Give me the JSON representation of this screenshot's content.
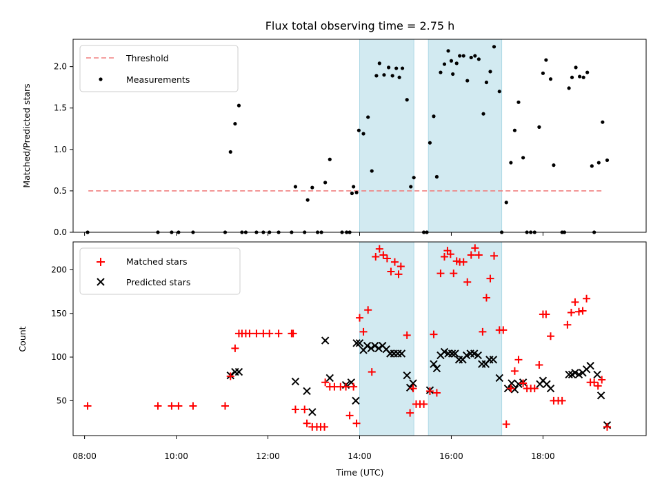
{
  "colors": {
    "threshold": "#f07f7f",
    "measurement": "#000000",
    "matched": "#ff0000",
    "predicted": "#000000",
    "window": "#add8e6"
  },
  "chart_data": [
    {
      "type": "scatter",
      "title": "Flux total observing time = 2.75 h",
      "ylabel": "Matched/Predicted stars",
      "xlabel": "",
      "ylim": [
        0,
        2.33
      ],
      "xlim": [
        "07:45",
        "20:15"
      ],
      "yticks": [
        "0.0",
        "0.5",
        "1.0",
        "1.5",
        "2.0"
      ],
      "shaded_windows": [
        [
          "14:00",
          "15:11"
        ],
        [
          "15:30",
          "17:06"
        ]
      ],
      "legend": {
        "placement": "upper-left",
        "entries": [
          "Threshold",
          "Measurements"
        ]
      },
      "threshold": {
        "name": "Threshold",
        "value": 0.5,
        "x": [
          "08:05",
          "19:20"
        ]
      },
      "series": [
        {
          "name": "Measurements",
          "points": [
            [
              "08:04",
              0
            ],
            [
              "09:36",
              0
            ],
            [
              "09:54",
              0
            ],
            [
              "10:03",
              0
            ],
            [
              "10:22",
              0
            ],
            [
              "11:04",
              0
            ],
            [
              "11:11",
              0.97
            ],
            [
              "11:17",
              1.31
            ],
            [
              "11:22",
              1.53
            ],
            [
              "11:26",
              0
            ],
            [
              "11:31",
              0
            ],
            [
              "11:45",
              0
            ],
            [
              "11:54",
              0
            ],
            [
              "12:02",
              0
            ],
            [
              "12:14",
              0
            ],
            [
              "12:31",
              0
            ],
            [
              "12:36",
              0.55
            ],
            [
              "12:48",
              0
            ],
            [
              "12:52",
              0.39
            ],
            [
              "12:58",
              0.54
            ],
            [
              "13:05",
              0
            ],
            [
              "13:10",
              0
            ],
            [
              "13:15",
              0.6
            ],
            [
              "13:21",
              0.88
            ],
            [
              "13:37",
              0
            ],
            [
              "13:43",
              0
            ],
            [
              "13:47",
              0
            ],
            [
              "13:50",
              0.47
            ],
            [
              "13:52",
              0.55
            ],
            [
              "13:56",
              0.48
            ],
            [
              "13:59",
              1.23
            ],
            [
              "14:05",
              1.19
            ],
            [
              "14:11",
              1.39
            ],
            [
              "14:16",
              0.74
            ],
            [
              "14:22",
              1.89
            ],
            [
              "14:26",
              2.04
            ],
            [
              "14:32",
              1.9
            ],
            [
              "14:38",
              1.99
            ],
            [
              "14:43",
              1.89
            ],
            [
              "14:48",
              1.98
            ],
            [
              "14:52",
              1.87
            ],
            [
              "14:56",
              1.98
            ],
            [
              "15:02",
              1.6
            ],
            [
              "15:07",
              0.55
            ],
            [
              "15:11",
              0.66
            ],
            [
              "15:24",
              0
            ],
            [
              "15:28",
              0
            ],
            [
              "15:32",
              1.08
            ],
            [
              "15:37",
              1.4
            ],
            [
              "15:41",
              0.67
            ],
            [
              "15:46",
              1.93
            ],
            [
              "15:51",
              2.03
            ],
            [
              "15:56",
              2.19
            ],
            [
              "16:00",
              2.07
            ],
            [
              "16:02",
              1.91
            ],
            [
              "16:07",
              2.04
            ],
            [
              "16:11",
              2.13
            ],
            [
              "16:16",
              2.13
            ],
            [
              "16:21",
              1.83
            ],
            [
              "16:26",
              2.11
            ],
            [
              "16:31",
              2.13
            ],
            [
              "16:36",
              2.09
            ],
            [
              "16:42",
              1.43
            ],
            [
              "16:46",
              1.81
            ],
            [
              "16:51",
              1.94
            ],
            [
              "16:56",
              2.24
            ],
            [
              "17:03",
              1.7
            ],
            [
              "17:06",
              0
            ],
            [
              "17:12",
              0.36
            ],
            [
              "17:18",
              0.84
            ],
            [
              "17:23",
              1.23
            ],
            [
              "17:28",
              1.57
            ],
            [
              "17:34",
              0.9
            ],
            [
              "17:39",
              0
            ],
            [
              "17:44",
              0
            ],
            [
              "17:49",
              0
            ],
            [
              "17:55",
              1.27
            ],
            [
              "18:00",
              1.92
            ],
            [
              "18:04",
              2.08
            ],
            [
              "18:10",
              1.85
            ],
            [
              "18:14",
              0.81
            ],
            [
              "18:25",
              0
            ],
            [
              "18:28",
              0
            ],
            [
              "18:34",
              1.74
            ],
            [
              "18:38",
              1.87
            ],
            [
              "18:43",
              1.99
            ],
            [
              "18:48",
              1.88
            ],
            [
              "18:53",
              1.87
            ],
            [
              "18:58",
              1.93
            ],
            [
              "19:04",
              0.8
            ],
            [
              "19:07",
              0
            ],
            [
              "19:13",
              0.84
            ],
            [
              "19:18",
              1.33
            ],
            [
              "19:24",
              0.87
            ]
          ]
        }
      ]
    },
    {
      "type": "scatter",
      "title": "",
      "ylabel": "Count",
      "xlabel": "Time (UTC)",
      "ylim": [
        10,
        232
      ],
      "xlim": [
        "07:45",
        "20:15"
      ],
      "yticks": [
        "50",
        "100",
        "150",
        "200"
      ],
      "xticks": [
        "08:00",
        "10:00",
        "12:00",
        "14:00",
        "16:00",
        "18:00"
      ],
      "shaded_windows": [
        [
          "14:00",
          "15:11"
        ],
        [
          "15:30",
          "17:06"
        ]
      ],
      "legend": {
        "placement": "upper-left",
        "entries": [
          "Matched stars",
          "Predicted stars"
        ]
      },
      "series": [
        {
          "name": "Matched stars",
          "marker": "+",
          "points": [
            [
              "08:04",
              44
            ],
            [
              "09:36",
              44
            ],
            [
              "09:54",
              44
            ],
            [
              "10:03",
              44
            ],
            [
              "10:22",
              44
            ],
            [
              "11:04",
              44
            ],
            [
              "11:11",
              78
            ],
            [
              "11:17",
              110
            ],
            [
              "11:22",
              127
            ],
            [
              "11:26",
              127
            ],
            [
              "11:31",
              127
            ],
            [
              "11:36",
              127
            ],
            [
              "11:45",
              127
            ],
            [
              "11:54",
              127
            ],
            [
              "12:02",
              127
            ],
            [
              "12:14",
              127
            ],
            [
              "12:31",
              127
            ],
            [
              "12:33",
              127
            ],
            [
              "12:36",
              40
            ],
            [
              "12:48",
              40
            ],
            [
              "12:51",
              24
            ],
            [
              "12:58",
              20
            ],
            [
              "13:04",
              20
            ],
            [
              "13:09",
              20
            ],
            [
              "13:14",
              20
            ],
            [
              "13:15",
              71
            ],
            [
              "13:21",
              66
            ],
            [
              "13:27",
              66
            ],
            [
              "13:35",
              66
            ],
            [
              "13:42",
              66
            ],
            [
              "13:47",
              33
            ],
            [
              "13:52",
              66
            ],
            [
              "13:56",
              24
            ],
            [
              "14:00",
              145
            ],
            [
              "14:05",
              129
            ],
            [
              "14:11",
              154
            ],
            [
              "14:16",
              83
            ],
            [
              "14:21",
              215
            ],
            [
              "14:26",
              224
            ],
            [
              "14:31",
              217
            ],
            [
              "14:36",
              213
            ],
            [
              "14:41",
              198
            ],
            [
              "14:46",
              209
            ],
            [
              "14:51",
              195
            ],
            [
              "14:54",
              204
            ],
            [
              "15:02",
              125
            ],
            [
              "15:06",
              36
            ],
            [
              "15:10",
              64
            ],
            [
              "15:14",
              46
            ],
            [
              "15:19",
              46
            ],
            [
              "15:24",
              46
            ],
            [
              "15:32",
              61
            ],
            [
              "15:37",
              126
            ],
            [
              "15:41",
              59
            ],
            [
              "15:46",
              196
            ],
            [
              "15:51",
              215
            ],
            [
              "15:55",
              222
            ],
            [
              "15:59",
              218
            ],
            [
              "16:03",
              196
            ],
            [
              "16:07",
              210
            ],
            [
              "16:11",
              209
            ],
            [
              "16:16",
              209
            ],
            [
              "16:21",
              186
            ],
            [
              "16:26",
              217
            ],
            [
              "16:31",
              225
            ],
            [
              "16:36",
              217
            ],
            [
              "16:41",
              129
            ],
            [
              "16:46",
              168
            ],
            [
              "16:51",
              190
            ],
            [
              "16:56",
              216
            ],
            [
              "17:03",
              131
            ],
            [
              "17:08",
              131
            ],
            [
              "17:12",
              23
            ],
            [
              "17:18",
              64
            ],
            [
              "17:23",
              84
            ],
            [
              "17:28",
              97
            ],
            [
              "17:34",
              70
            ],
            [
              "17:39",
              64
            ],
            [
              "17:44",
              64
            ],
            [
              "17:49",
              64
            ],
            [
              "17:55",
              91
            ],
            [
              "18:00",
              149
            ],
            [
              "18:04",
              149
            ],
            [
              "18:10",
              124
            ],
            [
              "18:14",
              50
            ],
            [
              "18:20",
              50
            ],
            [
              "18:25",
              50
            ],
            [
              "18:32",
              137
            ],
            [
              "18:37",
              151
            ],
            [
              "18:42",
              163
            ],
            [
              "18:47",
              152
            ],
            [
              "18:52",
              153
            ],
            [
              "18:57",
              167
            ],
            [
              "19:02",
              71
            ],
            [
              "19:07",
              71
            ],
            [
              "19:12",
              67
            ],
            [
              "19:17",
              74
            ],
            [
              "19:24",
              20
            ]
          ]
        },
        {
          "name": "Predicted stars",
          "marker": "x",
          "points": [
            [
              "11:11",
              79
            ],
            [
              "11:17",
              83
            ],
            [
              "11:22",
              83
            ],
            [
              "12:36",
              72
            ],
            [
              "12:51",
              61
            ],
            [
              "12:58",
              37
            ],
            [
              "13:15",
              119
            ],
            [
              "13:21",
              76
            ],
            [
              "13:42",
              68
            ],
            [
              "13:49",
              71
            ],
            [
              "13:55",
              50
            ],
            [
              "13:56",
              116
            ],
            [
              "14:00",
              116
            ],
            [
              "14:05",
              108
            ],
            [
              "14:10",
              113
            ],
            [
              "14:15",
              110
            ],
            [
              "14:20",
              113
            ],
            [
              "14:25",
              110
            ],
            [
              "14:30",
              113
            ],
            [
              "14:35",
              109
            ],
            [
              "14:40",
              104
            ],
            [
              "14:45",
              104
            ],
            [
              "14:50",
              104
            ],
            [
              "14:55",
              104
            ],
            [
              "15:02",
              79
            ],
            [
              "15:06",
              65
            ],
            [
              "15:10",
              70
            ],
            [
              "15:32",
              62
            ],
            [
              "15:37",
              92
            ],
            [
              "15:41",
              87
            ],
            [
              "15:46",
              102
            ],
            [
              "15:51",
              106
            ],
            [
              "15:56",
              104
            ],
            [
              "16:01",
              104
            ],
            [
              "16:05",
              104
            ],
            [
              "16:10",
              97
            ],
            [
              "16:15",
              97
            ],
            [
              "16:20",
              102
            ],
            [
              "16:25",
              104
            ],
            [
              "16:30",
              104
            ],
            [
              "16:35",
              102
            ],
            [
              "16:40",
              92
            ],
            [
              "16:45",
              92
            ],
            [
              "16:50",
              97
            ],
            [
              "16:55",
              97
            ],
            [
              "17:03",
              76
            ],
            [
              "17:14",
              64
            ],
            [
              "17:19",
              70
            ],
            [
              "17:23",
              63
            ],
            [
              "17:28",
              69
            ],
            [
              "17:34",
              71
            ],
            [
              "17:56",
              69
            ],
            [
              "18:00",
              73
            ],
            [
              "18:05",
              69
            ],
            [
              "18:10",
              64
            ],
            [
              "18:34",
              80
            ],
            [
              "18:38",
              80
            ],
            [
              "18:42",
              82
            ],
            [
              "18:47",
              80
            ],
            [
              "18:52",
              82
            ],
            [
              "18:57",
              86
            ],
            [
              "19:02",
              90
            ],
            [
              "19:11",
              80
            ],
            [
              "19:16",
              56
            ],
            [
              "19:24",
              22
            ]
          ]
        }
      ]
    }
  ]
}
